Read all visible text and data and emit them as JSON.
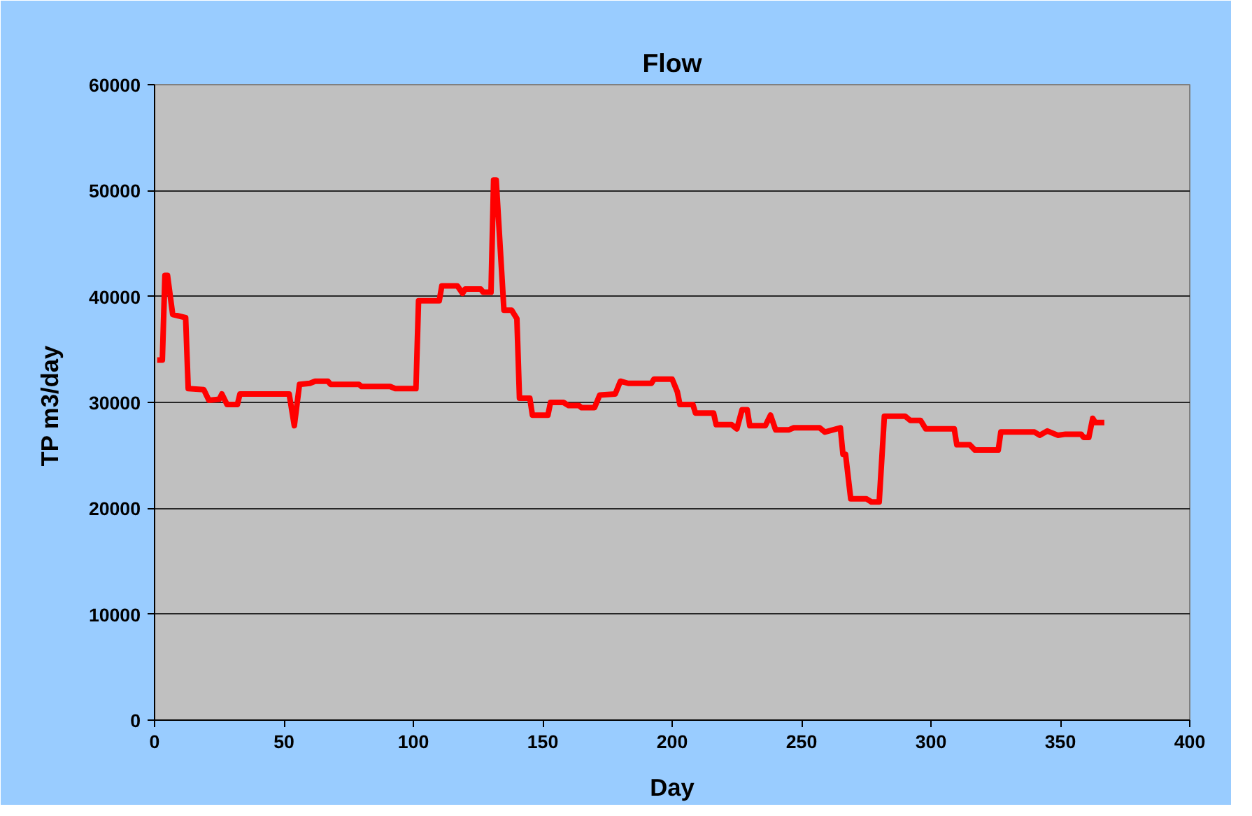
{
  "chart_data": {
    "type": "line",
    "title": "Flow",
    "xlabel": "Day",
    "ylabel": "TP  m3/day",
    "xlim": [
      0,
      400
    ],
    "xticks": [
      0,
      50,
      100,
      150,
      200,
      250,
      300,
      350,
      400
    ],
    "ylim": [
      0,
      60000
    ],
    "yticks": [
      0,
      10000,
      20000,
      30000,
      40000,
      50000,
      60000
    ],
    "grid": "y",
    "marker": "none",
    "line_style": "solid",
    "series": [
      {
        "color": "#ff0000",
        "x": [
          1,
          3,
          4,
          5,
          7,
          12,
          13,
          19,
          21,
          25,
          26,
          28,
          32,
          33,
          52,
          54,
          56,
          60,
          62,
          67,
          68,
          79,
          80,
          91,
          93,
          101,
          102,
          110,
          111,
          117,
          119,
          120,
          126,
          127,
          130,
          131,
          132,
          135,
          138,
          140,
          141,
          145,
          146,
          152,
          153,
          158,
          160,
          164,
          165,
          170,
          172,
          178,
          180,
          183,
          192,
          193,
          200,
          202,
          203,
          208,
          209,
          216,
          217,
          223,
          225,
          227,
          229,
          230,
          236,
          238,
          240,
          245,
          247,
          257,
          259,
          262,
          265,
          266,
          267,
          269,
          275,
          277,
          280,
          282,
          290,
          292,
          296,
          298,
          309,
          310,
          315,
          317,
          326,
          327,
          340,
          342,
          345,
          349,
          352,
          358,
          359,
          361,
          362.5,
          363.5,
          367
        ],
        "values": [
          34000,
          34000,
          42000,
          42000,
          38300,
          38000,
          31300,
          31200,
          30200,
          30300,
          30800,
          29800,
          29800,
          30800,
          30800,
          27800,
          31700,
          31800,
          32000,
          32000,
          31700,
          31700,
          31500,
          31500,
          31300,
          31300,
          39600,
          39600,
          41000,
          41000,
          40300,
          40700,
          40700,
          40400,
          40400,
          51000,
          51000,
          38700,
          38700,
          37900,
          30400,
          30400,
          28800,
          28800,
          30000,
          30000,
          29700,
          29700,
          29500,
          29500,
          30700,
          30800,
          32000,
          31800,
          31800,
          32200,
          32200,
          31000,
          29800,
          29800,
          29000,
          29000,
          27900,
          27900,
          27500,
          29300,
          29300,
          27800,
          27800,
          28800,
          27400,
          27400,
          27600,
          27600,
          27200,
          27400,
          27600,
          25100,
          25100,
          20900,
          20900,
          20600,
          20600,
          28700,
          28700,
          28300,
          28300,
          27500,
          27500,
          26000,
          26000,
          25500,
          25500,
          27200,
          27200,
          26900,
          27300,
          26900,
          27000,
          27000,
          26700,
          26700,
          28500,
          28100,
          28100
        ]
      }
    ]
  }
}
